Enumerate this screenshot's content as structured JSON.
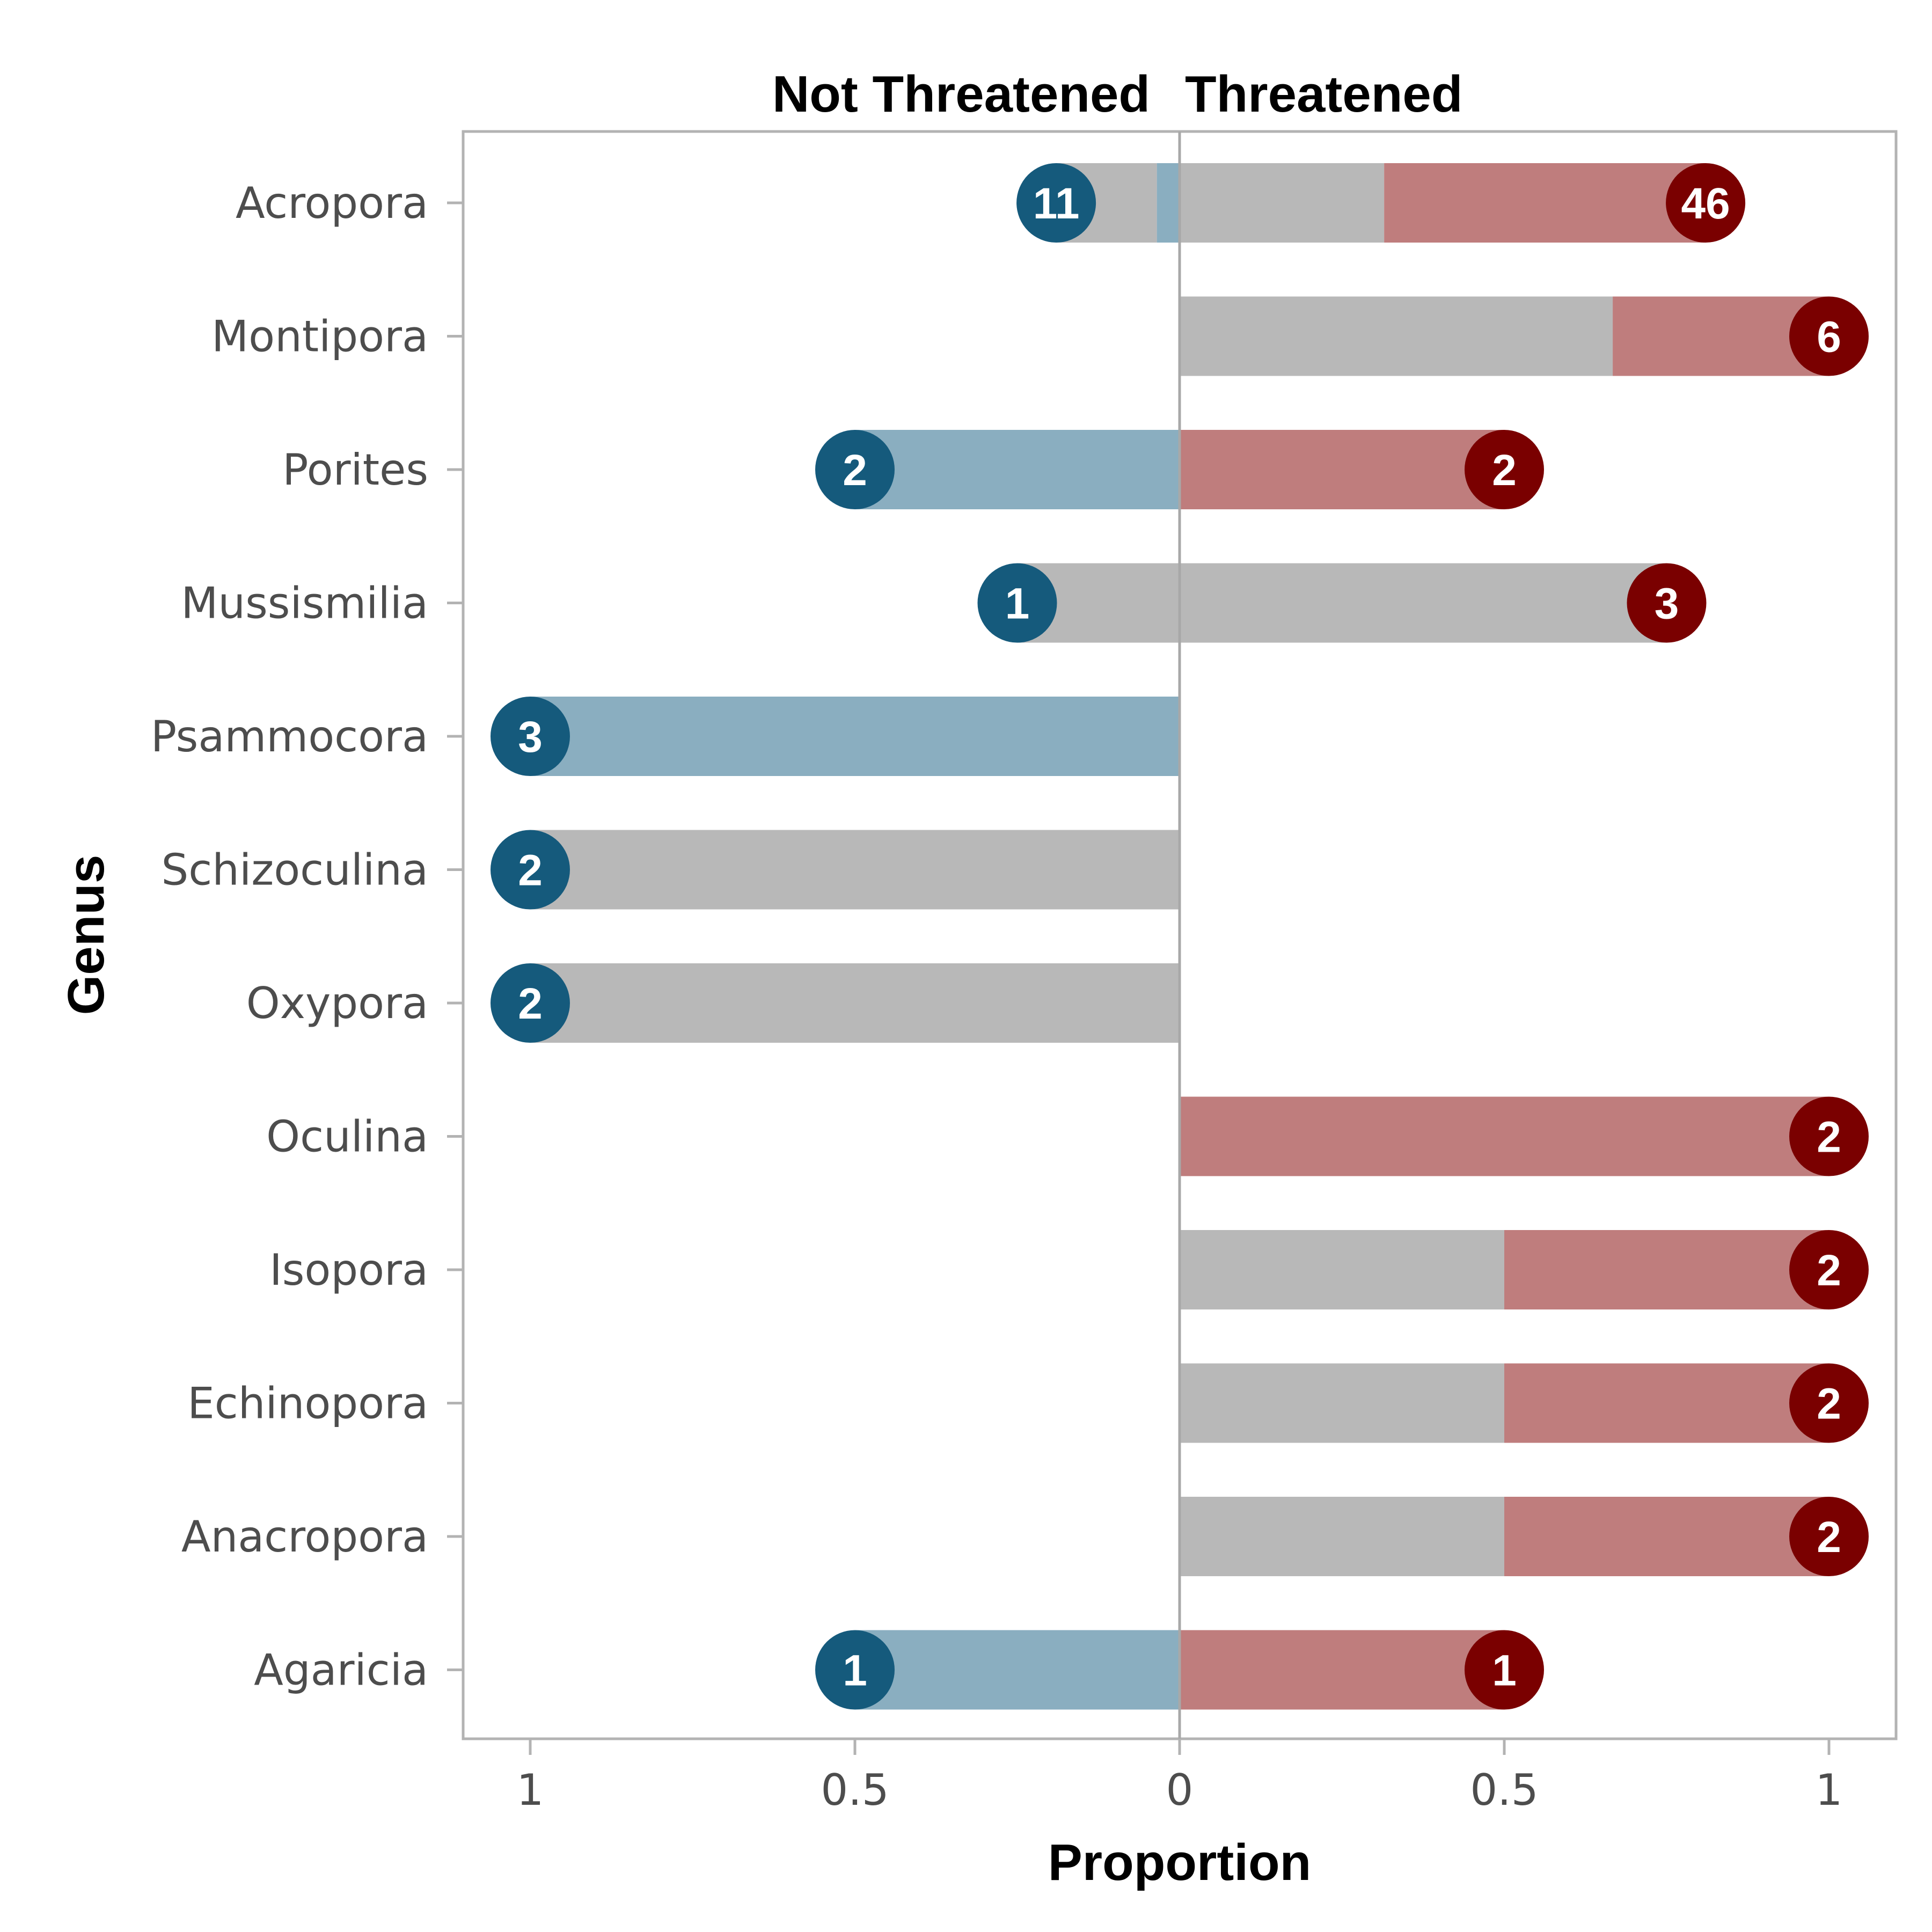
{
  "chart_data": {
    "type": "bar",
    "subtype": "diverging-stacked-horizontal",
    "panel_titles": {
      "left": "Not Threatened",
      "right": "Threatened"
    },
    "xlabel": "Proportion",
    "ylabel": "Genus",
    "xlim": [
      -1,
      1
    ],
    "x_ticks": [
      {
        "value": -1,
        "label": "1"
      },
      {
        "value": -0.5,
        "label": "0.5"
      },
      {
        "value": 0,
        "label": "0"
      },
      {
        "value": 0.5,
        "label": "0.5"
      },
      {
        "value": 1,
        "label": "1"
      }
    ],
    "grid": false,
    "colors": {
      "not_threatened_bar": "#8aaec0",
      "not_threatened_badge": "#155a7c",
      "threatened_bar": "#bf7d7d",
      "threatened_badge": "#7a0000",
      "other_bar": "#b8b8b8",
      "frame": "#b3b3b3",
      "zero_line": "#a8a8a8"
    },
    "categories": [
      "Acropora",
      "Montipora",
      "Porites",
      "Mussismilia",
      "Psammocora",
      "Schizoculina",
      "Oxypora",
      "Oculina",
      "Isopora",
      "Echinopora",
      "Anacropora",
      "Agaricia"
    ],
    "rows": [
      {
        "genus": "Acropora",
        "nt_colored": 0.035,
        "nt_total": 0.19,
        "t_grey": 0.315,
        "t_total": 0.81,
        "nt_count": "11",
        "t_count": "46"
      },
      {
        "genus": "Montipora",
        "nt_colored": 0,
        "nt_total": 0,
        "t_grey": 0.667,
        "t_total": 1.0,
        "nt_count": "",
        "t_count": "6"
      },
      {
        "genus": "Porites",
        "nt_colored": 0.5,
        "nt_total": 0.5,
        "t_grey": 0,
        "t_total": 0.5,
        "nt_count": "2",
        "t_count": "2"
      },
      {
        "genus": "Mussismilia",
        "nt_colored": 0,
        "nt_total": 0.25,
        "t_grey": 0.75,
        "t_total": 0.75,
        "nt_count": "1",
        "t_count": "3"
      },
      {
        "genus": "Psammocora",
        "nt_colored": 1.0,
        "nt_total": 1.0,
        "t_grey": 0,
        "t_total": 0,
        "nt_count": "3",
        "t_count": ""
      },
      {
        "genus": "Schizoculina",
        "nt_colored": 0,
        "nt_total": 1.0,
        "t_grey": 0,
        "t_total": 0,
        "nt_count": "2",
        "t_count": ""
      },
      {
        "genus": "Oxypora",
        "nt_colored": 0,
        "nt_total": 1.0,
        "t_grey": 0,
        "t_total": 0,
        "nt_count": "2",
        "t_count": ""
      },
      {
        "genus": "Oculina",
        "nt_colored": 0,
        "nt_total": 0,
        "t_grey": 0,
        "t_total": 1.0,
        "nt_count": "",
        "t_count": "2"
      },
      {
        "genus": "Isopora",
        "nt_colored": 0,
        "nt_total": 0,
        "t_grey": 0.5,
        "t_total": 1.0,
        "nt_count": "",
        "t_count": "2"
      },
      {
        "genus": "Echinopora",
        "nt_colored": 0,
        "nt_total": 0,
        "t_grey": 0.5,
        "t_total": 1.0,
        "nt_count": "",
        "t_count": "2"
      },
      {
        "genus": "Anacropora",
        "nt_colored": 0,
        "nt_total": 0,
        "t_grey": 0.5,
        "t_total": 1.0,
        "nt_count": "",
        "t_count": "2"
      },
      {
        "genus": "Agaricia",
        "nt_colored": 0.5,
        "nt_total": 0.5,
        "t_grey": 0,
        "t_total": 0.5,
        "nt_count": "1",
        "t_count": "1"
      }
    ]
  }
}
